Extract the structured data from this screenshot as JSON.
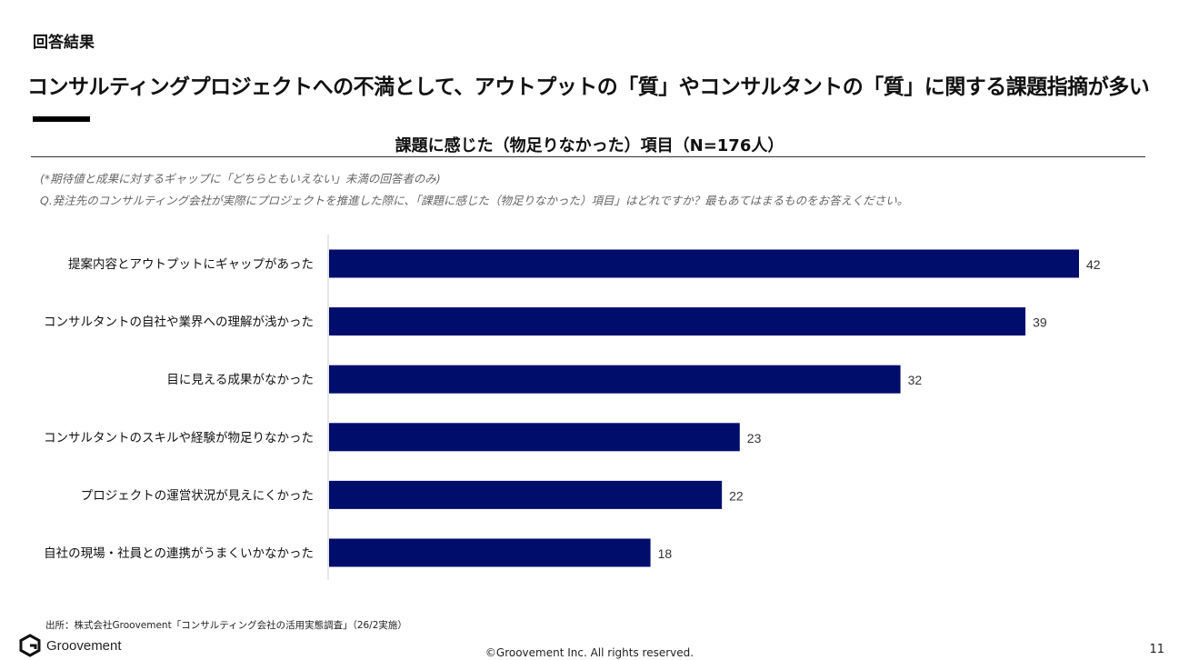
{
  "header": {
    "section_label": "回答結果",
    "headline": "コンサルティングプロジェクトへの不満として、アウトプットの「質」やコンサルタントの「質」に関する課題指摘が多い"
  },
  "chart_data": {
    "type": "bar",
    "orientation": "horizontal",
    "title": "課題に感じた（物足りなかった）項目（N=176人）",
    "notes": [
      "(*期待値と成果に対するギャップに「どちらともいえない」未満の回答者のみ)",
      "Q.発注先のコンサルティング会社が実際にプロジェクトを推進した際に、「課題に感じた（物足りなかった）項目」はどれですか？最もあてはまるものをお答えください。"
    ],
    "categories": [
      "提案内容とアウトプットにギャップがあった",
      "コンサルタントの自社や業界への理解が浅かった",
      "目に見える成果がなかった",
      "コンサルタントのスキルや経験が物足りなかった",
      "プロジェクトの運営状況が見えにくかった",
      "自社の現場・社員との連携がうまくいかなかった"
    ],
    "values": [
      42,
      39,
      32,
      23,
      22,
      18
    ],
    "bar_color": "#000d6b",
    "xlim": [
      0,
      42
    ],
    "grid": false,
    "data_labels": true
  },
  "footer": {
    "source": "出所：株式会社Groovement「コンサルティング会社の活用実態調査」（26/2実施）",
    "logo_text": "Groovement",
    "copyright": "©Groovement Inc. All rights reserved.",
    "page_number": "11"
  }
}
